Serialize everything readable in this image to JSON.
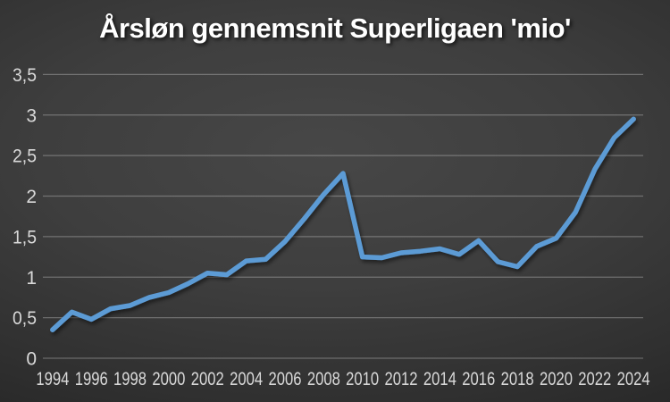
{
  "slide": {
    "title": "Årsløn gennemsnit Superligaen 'mio'"
  },
  "chart_data": {
    "type": "line",
    "title": "Årsløn gennemsnit Superligaen 'mio'",
    "xlabel": "",
    "ylabel": "",
    "x": [
      1994,
      1995,
      1996,
      1997,
      1998,
      1999,
      2000,
      2001,
      2002,
      2003,
      2004,
      2005,
      2006,
      2007,
      2008,
      2009,
      2010,
      2011,
      2012,
      2013,
      2014,
      2015,
      2016,
      2017,
      2018,
      2019,
      2020,
      2021,
      2022,
      2023,
      2024
    ],
    "values": [
      0.35,
      0.57,
      0.48,
      0.61,
      0.65,
      0.75,
      0.81,
      0.92,
      1.05,
      1.03,
      1.2,
      1.22,
      1.44,
      1.72,
      2.02,
      2.28,
      1.25,
      1.24,
      1.3,
      1.32,
      1.35,
      1.28,
      1.45,
      1.19,
      1.13,
      1.38,
      1.48,
      1.8,
      2.33,
      2.72,
      2.95
    ],
    "ylim": [
      0,
      3.5
    ],
    "y_tick_step": 0.5,
    "y_tick_labels": [
      "0",
      "0,5",
      "1",
      "1,5",
      "2",
      "2,5",
      "3",
      "3,5"
    ],
    "x_tick_years": [
      1994,
      1996,
      1998,
      2000,
      2002,
      2004,
      2006,
      2008,
      2010,
      2012,
      2014,
      2016,
      2018,
      2020,
      2022,
      2024
    ],
    "x_tick_labels": [
      "1994",
      "1996",
      "1998",
      "2000",
      "2002",
      "2004",
      "2006",
      "2008",
      "2010",
      "2012",
      "2014",
      "2016",
      "2018",
      "2020",
      "2022",
      "2024"
    ],
    "grid": true,
    "legend": "none",
    "markers": "none",
    "colors": {
      "line": "#5B9BD5",
      "gridline": "rgba(255,255,255,0.28)",
      "tick_label": "#D9D9D9",
      "title": "#FFFFFF",
      "background_center": "#474747",
      "background_edge": "#1F1F1F"
    }
  }
}
